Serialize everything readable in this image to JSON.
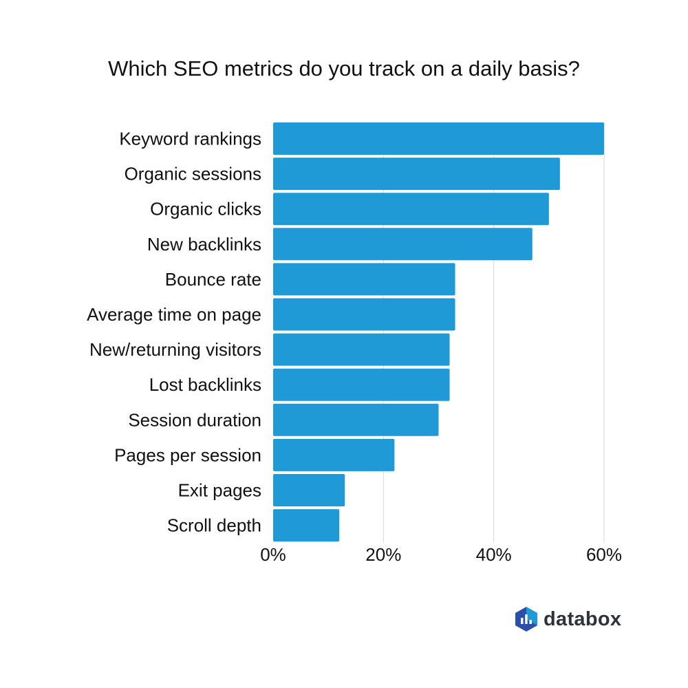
{
  "chart_data": {
    "type": "bar",
    "orientation": "horizontal",
    "title": "Which SEO metrics do you track on a daily basis?",
    "categories": [
      "Keyword rankings",
      "Organic sessions",
      "Organic clicks",
      "New backlinks",
      "Bounce rate",
      "Average time on page",
      "New/returning visitors",
      "Lost backlinks",
      "Session duration",
      "Pages per session",
      "Exit pages",
      "Scroll depth"
    ],
    "values": [
      60,
      52,
      50,
      47,
      33,
      33,
      32,
      32,
      30,
      22,
      13,
      12
    ],
    "unit": "%",
    "xlim": [
      0,
      60
    ],
    "ticks": [
      0,
      20,
      40,
      60
    ],
    "tick_labels": [
      "0%",
      "20%",
      "40%",
      "60%"
    ],
    "xlabel": "",
    "ylabel": "",
    "grid": true,
    "legend": "none",
    "bar_color": "#1f9ad6",
    "grid_color": "#d9d9d9"
  },
  "brand": {
    "name": "databox",
    "logo_icon": "databox-hexagon-logo",
    "logo_colors": [
      "#1f9ad6",
      "#2b4fa8"
    ]
  }
}
